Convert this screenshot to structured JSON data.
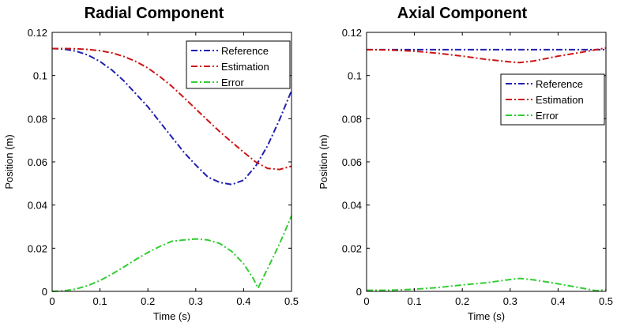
{
  "chart_data": [
    {
      "type": "line",
      "title": "Radial Component",
      "xlabel": "Time (s)",
      "ylabel": "Position (m)",
      "xlim": [
        0,
        0.5
      ],
      "ylim": [
        0,
        0.12
      ],
      "xticks": [
        "0",
        "0.1",
        "0.2",
        "0.3",
        "0.4",
        "0.5"
      ],
      "yticks": [
        "0",
        "0.02",
        "0.04",
        "0.06",
        "0.08",
        "0.1",
        "0.12"
      ],
      "legend_position": "top-right",
      "grid": false,
      "series": [
        {
          "name": "Reference",
          "color": "#2020b0",
          "dash": "dash-dot",
          "x": [
            0,
            0.025,
            0.05,
            0.075,
            0.1,
            0.125,
            0.15,
            0.175,
            0.2,
            0.225,
            0.25,
            0.275,
            0.3,
            0.325,
            0.35,
            0.375,
            0.4,
            0.425,
            0.45,
            0.475,
            0.5
          ],
          "y": [
            0.1125,
            0.1122,
            0.1113,
            0.1095,
            0.1065,
            0.1025,
            0.0975,
            0.0915,
            0.0855,
            0.0785,
            0.0715,
            0.0645,
            0.0585,
            0.053,
            0.0505,
            0.0495,
            0.0515,
            0.058,
            0.0675,
            0.0795,
            0.093
          ]
        },
        {
          "name": "Estimation",
          "color": "#cc1515",
          "dash": "dash-dot",
          "x": [
            0,
            0.025,
            0.05,
            0.075,
            0.1,
            0.125,
            0.15,
            0.175,
            0.2,
            0.225,
            0.25,
            0.275,
            0.3,
            0.325,
            0.35,
            0.375,
            0.4,
            0.425,
            0.45,
            0.475,
            0.5
          ],
          "y": [
            0.1125,
            0.1125,
            0.1124,
            0.1121,
            0.1115,
            0.1105,
            0.1088,
            0.1065,
            0.1035,
            0.0995,
            0.095,
            0.0898,
            0.0845,
            0.0792,
            0.074,
            0.0692,
            0.0645,
            0.06,
            0.057,
            0.0565,
            0.058
          ]
        },
        {
          "name": "Error",
          "color": "#33cc33",
          "dash": "dash-dot",
          "x": [
            0,
            0.025,
            0.05,
            0.075,
            0.1,
            0.125,
            0.15,
            0.175,
            0.2,
            0.225,
            0.25,
            0.275,
            0.3,
            0.325,
            0.35,
            0.375,
            0.4,
            0.42,
            0.43,
            0.44,
            0.45,
            0.475,
            0.5
          ],
          "y": [
            0,
            0.0003,
            0.0011,
            0.0027,
            0.005,
            0.008,
            0.0113,
            0.0148,
            0.018,
            0.0208,
            0.0232,
            0.0238,
            0.0243,
            0.0238,
            0.0222,
            0.0185,
            0.0128,
            0.006,
            0.0015,
            0.006,
            0.0105,
            0.022,
            0.035
          ]
        }
      ]
    },
    {
      "type": "line",
      "title": "Axial Component",
      "xlabel": "Time (s)",
      "ylabel": "Position (m)",
      "xlim": [
        0,
        0.5
      ],
      "ylim": [
        0,
        0.12
      ],
      "xticks": [
        "0",
        "0.1",
        "0.2",
        "0.3",
        "0.4",
        "0.5"
      ],
      "yticks": [
        "0",
        "0.02",
        "0.04",
        "0.06",
        "0.08",
        "0.1",
        "0.12"
      ],
      "legend_position": "upper-right",
      "grid": false,
      "series": [
        {
          "name": "Reference",
          "color": "#2020b0",
          "dash": "dash-dot",
          "x": [
            0,
            0.1,
            0.2,
            0.3,
            0.4,
            0.5
          ],
          "y": [
            0.112,
            0.112,
            0.112,
            0.112,
            0.112,
            0.112
          ]
        },
        {
          "name": "Estimation",
          "color": "#cc1515",
          "dash": "dash-dot",
          "x": [
            0,
            0.05,
            0.1,
            0.15,
            0.2,
            0.25,
            0.3,
            0.32,
            0.35,
            0.4,
            0.45,
            0.5
          ],
          "y": [
            0.112,
            0.1118,
            0.1113,
            0.1103,
            0.109,
            0.1075,
            0.1063,
            0.106,
            0.1068,
            0.109,
            0.1108,
            0.1128
          ]
        },
        {
          "name": "Error",
          "color": "#33cc33",
          "dash": "dash-dot",
          "x": [
            0,
            0.05,
            0.1,
            0.15,
            0.2,
            0.25,
            0.3,
            0.32,
            0.35,
            0.4,
            0.45,
            0.48,
            0.5
          ],
          "y": [
            0.0005,
            0.0005,
            0.001,
            0.0018,
            0.003,
            0.004,
            0.0055,
            0.006,
            0.0053,
            0.0035,
            0.0015,
            0.0003,
            0.0008
          ]
        }
      ]
    }
  ]
}
